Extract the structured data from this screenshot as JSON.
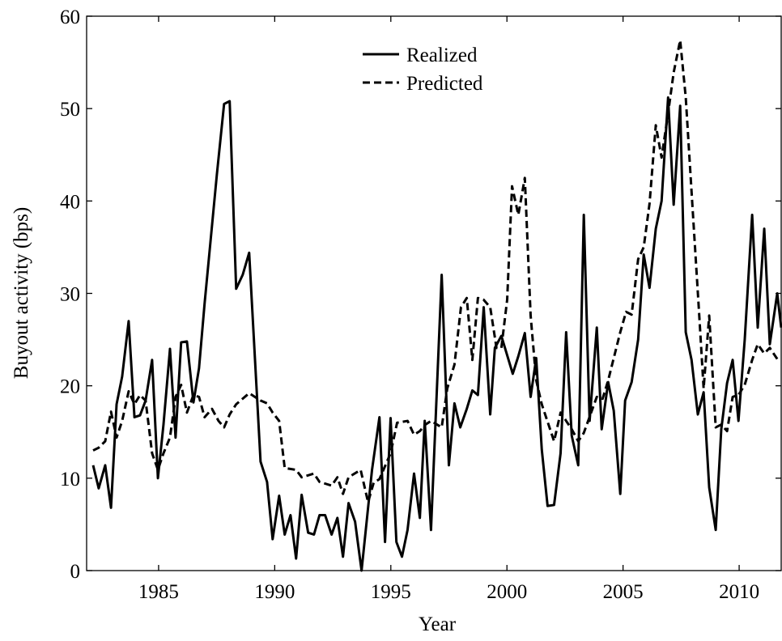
{
  "chart_data": {
    "type": "line",
    "xlabel": "Year",
    "ylabel": "Buyout activity (bps)",
    "xlim": [
      1981.9,
      2011.81
    ],
    "ylim": [
      0,
      60
    ],
    "xticks": [
      1985,
      1990,
      1995,
      2000,
      2005,
      2010
    ],
    "yticks": [
      0,
      10,
      20,
      30,
      40,
      50,
      60
    ],
    "grid": false,
    "legend": "top-center",
    "series": [
      {
        "name": "Realized",
        "color": "#000000",
        "dash": "solid",
        "x": [
          1982.18,
          1982.42,
          1982.7,
          1982.95,
          1983.19,
          1983.43,
          1983.71,
          1983.96,
          1984.2,
          1984.44,
          1984.72,
          1984.97,
          1985.21,
          1985.49,
          1985.73,
          1985.97,
          1986.22,
          1986.5,
          1986.74,
          1986.98,
          1987.23,
          1987.51,
          1987.82,
          1988.06,
          1988.34,
          1988.62,
          1988.9,
          1989.39,
          1989.67,
          1989.91,
          1990.19,
          1990.43,
          1990.68,
          1990.92,
          1991.16,
          1991.44,
          1991.69,
          1991.93,
          1992.17,
          1992.45,
          1992.7,
          1992.94,
          1993.18,
          1993.46,
          1993.74,
          1994.19,
          1994.51,
          1994.75,
          1994.99,
          1995.24,
          1995.48,
          1995.72,
          1996.0,
          1996.25,
          1996.46,
          1996.73,
          1997.19,
          1997.5,
          1997.74,
          1997.99,
          1998.27,
          1998.51,
          1998.75,
          1999.0,
          1999.28,
          1999.48,
          1999.76,
          2000.25,
          2000.49,
          2000.77,
          2001.02,
          2001.26,
          2001.5,
          2001.75,
          2002.03,
          2002.31,
          2002.55,
          2002.79,
          2003.07,
          2003.31,
          2003.56,
          2003.87,
          2004.08,
          2004.36,
          2004.6,
          2004.88,
          2005.09,
          2005.37,
          2005.65,
          2005.89,
          2006.14,
          2006.41,
          2006.66,
          2006.94,
          2007.18,
          2007.46,
          2007.7,
          2007.95,
          2008.22,
          2008.47,
          2008.71,
          2008.99,
          2009.23,
          2009.48,
          2009.72,
          2009.97,
          2010.24,
          2010.56,
          2010.8,
          2011.08,
          2011.32,
          2011.64,
          2011.81
        ],
        "values": [
          11.4,
          8.9,
          11.4,
          6.8,
          18,
          21,
          27,
          16.6,
          16.8,
          18.4,
          22.8,
          10,
          15.8,
          24,
          14.4,
          24.7,
          24.8,
          18.2,
          21.9,
          28.9,
          35.5,
          42.9,
          50.5,
          50.8,
          30.5,
          32,
          34.4,
          11.8,
          9.6,
          3.4,
          8.1,
          3.9,
          6,
          1.3,
          8.2,
          4.1,
          3.9,
          6,
          6,
          3.9,
          5.7,
          1.5,
          7.3,
          5.3,
          0,
          10.9,
          16.6,
          3.1,
          16.5,
          3.1,
          1.5,
          4.4,
          10.5,
          5.7,
          16.2,
          4.4,
          32,
          11.4,
          18.1,
          15.5,
          17.5,
          19.5,
          19,
          28.5,
          16.9,
          24.1,
          25.4,
          21.3,
          23.2,
          25.7,
          18.8,
          23,
          13.1,
          7.0,
          7.1,
          12.7,
          25.8,
          14.6,
          11.4,
          38.5,
          16.2,
          26.3,
          15.3,
          20.4,
          17.3,
          8.3,
          18.4,
          20.4,
          25,
          34.2,
          30.6,
          37,
          40,
          51.2,
          39.6,
          50.3,
          25.8,
          22.8,
          16.9,
          19.3,
          9,
          4.4,
          15.3,
          20.3,
          22.8,
          16.2,
          25,
          38.5,
          26.3,
          37,
          24.5,
          30,
          26.3
        ]
      },
      {
        "name": "Predicted",
        "color": "#000000",
        "dash": "dashed",
        "x": [
          1982.18,
          1982.42,
          1982.7,
          1982.95,
          1983.19,
          1983.43,
          1983.71,
          1983.96,
          1984.2,
          1984.44,
          1984.72,
          1984.97,
          1985.21,
          1985.49,
          1985.73,
          1985.97,
          1986.22,
          1986.5,
          1986.74,
          1986.98,
          1987.3,
          1987.58,
          1987.82,
          1988.06,
          1988.34,
          1988.9,
          1989.39,
          1989.67,
          1989.91,
          1990.19,
          1990.43,
          1990.92,
          1991.16,
          1991.69,
          1991.93,
          1992.45,
          1992.7,
          1992.94,
          1993.18,
          1993.7,
          1994.02,
          1994.26,
          1994.51,
          1994.99,
          1995.27,
          1995.72,
          1996.0,
          1996.25,
          1996.49,
          1996.73,
          1997.19,
          1997.43,
          1997.74,
          1998.02,
          1998.27,
          1998.51,
          1998.75,
          1999.0,
          1999.28,
          1999.55,
          1999.76,
          2000.01,
          2000.22,
          2000.49,
          2000.77,
          2001.02,
          2001.26,
          2001.5,
          2002.03,
          2002.31,
          2002.55,
          2002.79,
          2003.07,
          2003.31,
          2003.87,
          2004.12,
          2004.36,
          2004.88,
          2005.13,
          2005.37,
          2005.65,
          2005.89,
          2006.14,
          2006.41,
          2006.66,
          2006.94,
          2007.18,
          2007.46,
          2007.7,
          2007.98,
          2008.26,
          2008.47,
          2008.71,
          2008.99,
          2009.23,
          2009.48,
          2009.72,
          2009.97,
          2010.24,
          2010.56,
          2010.8,
          2011.08,
          2011.32,
          2011.64
        ],
        "values": [
          13,
          13.3,
          14,
          17.2,
          14.4,
          16.2,
          19.4,
          18,
          19,
          18.4,
          12.7,
          10.9,
          12.7,
          14.4,
          18.8,
          20.1,
          17.1,
          19,
          18.8,
          16.6,
          17.5,
          16.2,
          15.5,
          16.9,
          18,
          19.2,
          18.4,
          18.1,
          17.1,
          16.2,
          11.1,
          10.9,
          10.1,
          10.5,
          9.6,
          9.2,
          10.1,
          8.3,
          10.1,
          10.9,
          7.4,
          9.5,
          9.9,
          12.7,
          16,
          16.2,
          14.7,
          15.1,
          15.8,
          16.2,
          15.5,
          19.7,
          22.3,
          28.5,
          29.5,
          22.8,
          29.5,
          29.3,
          28.5,
          24.1,
          24.1,
          29.3,
          41.6,
          38.5,
          42.5,
          27.6,
          20.6,
          18,
          14,
          17.1,
          16.2,
          15.3,
          14,
          14.9,
          18.8,
          18.6,
          20.6,
          25.8,
          28,
          27.7,
          33.7,
          35,
          39.7,
          48.2,
          44.7,
          49.5,
          53.9,
          57.4,
          51.2,
          39.8,
          28.5,
          19.7,
          27.6,
          15.5,
          15.8,
          15.1,
          18.8,
          19,
          20.1,
          22.8,
          24.5,
          23.5,
          24.1,
          22.9
        ]
      }
    ]
  }
}
